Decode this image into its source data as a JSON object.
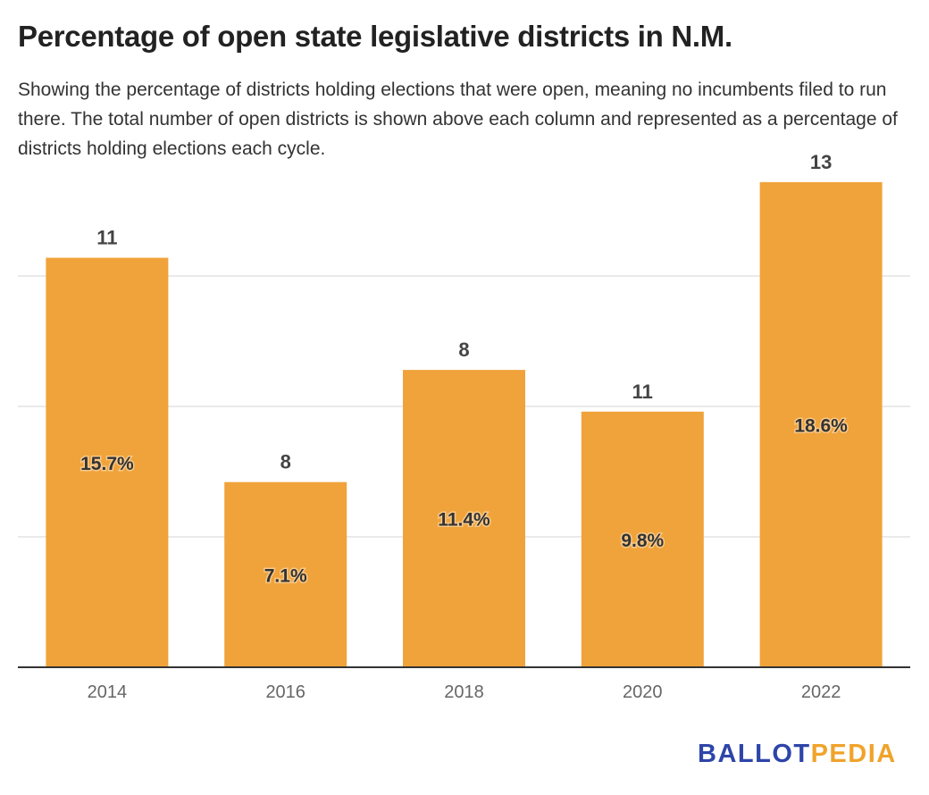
{
  "title": "Percentage of open state legislative districts in N.M.",
  "subtitle": "Showing the percentage of districts holding elections that were open, meaning no incumbents filed to run there. The total number of open districts is shown above each column and represented as a percentage of districts holding elections each cycle.",
  "logo": {
    "part1": "BALLOT",
    "part2": "PEDIA"
  },
  "chart_data": {
    "type": "bar",
    "categories": [
      "2014",
      "2016",
      "2018",
      "2020",
      "2022"
    ],
    "values": [
      15.7,
      7.1,
      11.4,
      9.8,
      18.6
    ],
    "value_labels": [
      "15.7%",
      "7.1%",
      "11.4%",
      "9.8%",
      "18.6%"
    ],
    "counts": [
      "11",
      "8",
      "8",
      "11",
      "13"
    ],
    "ylim": [
      0,
      20
    ],
    "gridlines": [
      5,
      10,
      15
    ],
    "grid": true,
    "y_tick_labels_shown": false,
    "bar_color": "#f0a33a",
    "xlabel": "",
    "ylabel": ""
  }
}
